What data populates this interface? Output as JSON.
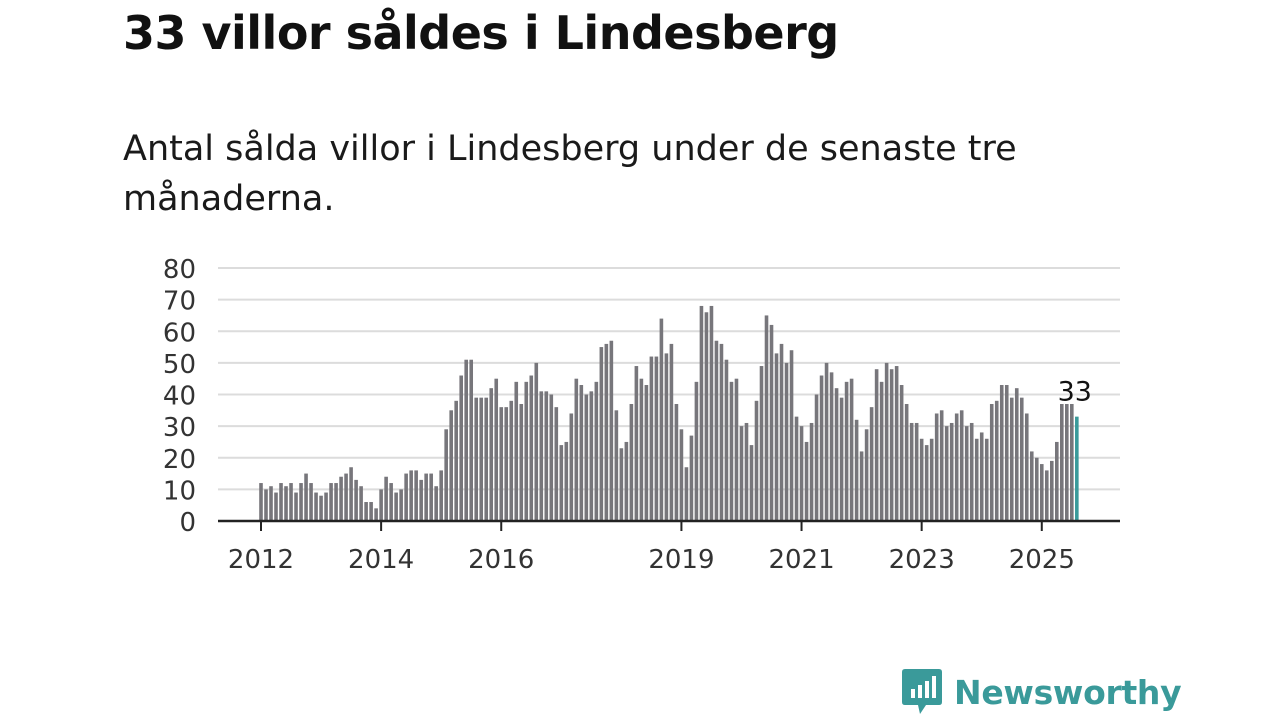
{
  "title": "33 villor såldes i Lindesberg",
  "subtitle": "Antal sålda villor i Lindesberg under de senaste tre månaderna.",
  "brand": {
    "name": "Newsworthy",
    "icon": "newsworthy-logo-icon",
    "color": "#3a9a9a"
  },
  "chart_data": {
    "type": "bar",
    "title": "",
    "xlabel": "",
    "ylabel": "",
    "ylim": [
      0,
      80
    ],
    "yticks": [
      0,
      10,
      20,
      30,
      40,
      50,
      60,
      70,
      80
    ],
    "grid": true,
    "bar_color": "#77767b",
    "highlight_color": "#3a9a9a",
    "start_month": "2012-01",
    "xtick_years": [
      "2012",
      "2014",
      "2016",
      "2019",
      "2021",
      "2023",
      "2025"
    ],
    "highlight_label": "33",
    "series": [
      {
        "values": [
          12,
          10,
          11,
          9,
          12,
          11,
          12,
          9,
          12,
          15,
          12,
          9,
          8,
          9,
          12,
          12,
          14,
          15,
          17,
          13,
          11,
          6,
          6,
          4,
          10,
          14,
          12,
          9,
          10,
          15,
          16,
          16,
          13,
          15,
          15,
          11,
          16,
          29,
          35,
          38,
          46,
          51,
          51,
          39,
          39,
          39,
          42,
          45,
          36,
          36,
          38,
          44,
          37,
          44,
          46,
          50,
          41,
          41,
          40,
          36,
          24,
          25,
          34,
          45,
          43,
          40,
          41,
          44,
          55,
          56,
          57,
          35,
          23,
          25,
          37,
          49,
          45,
          43,
          52,
          52,
          64,
          53,
          56,
          37,
          29,
          17,
          27,
          44,
          68,
          66,
          68,
          57,
          56,
          51,
          44,
          45,
          30,
          31,
          24,
          38,
          49,
          65,
          62,
          53,
          56,
          50,
          54,
          33,
          30,
          25,
          31,
          40,
          46,
          50,
          47,
          42,
          39,
          44,
          45,
          32,
          22,
          29,
          36,
          48,
          44,
          50,
          48,
          49,
          43,
          37,
          31,
          31,
          26,
          24,
          26,
          34,
          35,
          30,
          31,
          34,
          35,
          30,
          31,
          26,
          28,
          26,
          37,
          38,
          43,
          43,
          39,
          42,
          39,
          34,
          22,
          20,
          18,
          16,
          19,
          25,
          37,
          37,
          37,
          33
        ]
      }
    ]
  }
}
